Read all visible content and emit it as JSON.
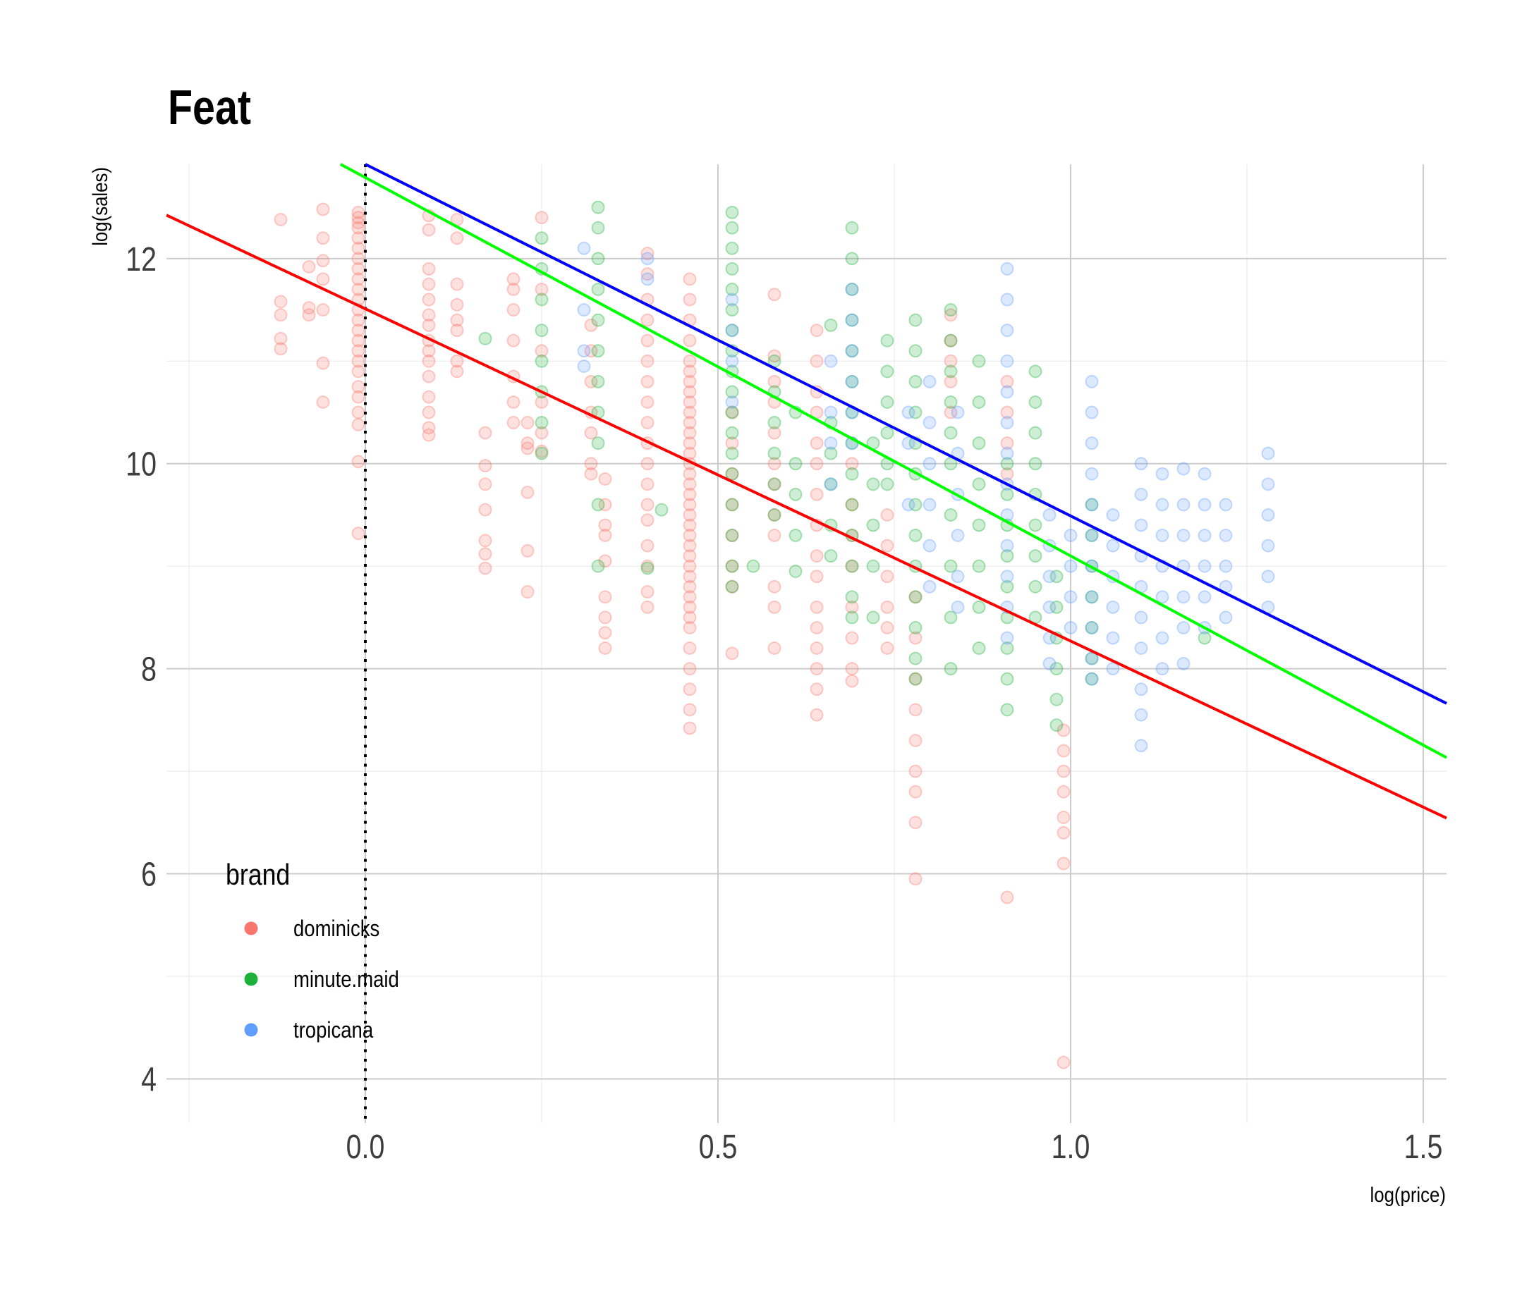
{
  "chart_data": {
    "type": "scatter",
    "title": "Feat",
    "xlabel": "log(price)",
    "ylabel": "log(sales)",
    "xlim": [
      -0.282,
      1.533
    ],
    "ylim": [
      3.57,
      12.92
    ],
    "x_ticks": [
      0.0,
      0.5,
      1.0,
      1.5
    ],
    "x_tick_labels": [
      "0.0",
      "0.5",
      "1.0",
      "1.5"
    ],
    "y_ticks": [
      4,
      6,
      8,
      10,
      12
    ],
    "y_tick_labels": [
      "4",
      "6",
      "8",
      "10",
      "12"
    ],
    "x_minor": [
      -0.25,
      0.25,
      0.75,
      1.25
    ],
    "y_minor": [
      5,
      7,
      9,
      11
    ],
    "grid": true,
    "reference_line": {
      "x": 0.0,
      "style": "dotted",
      "color": "#000000"
    },
    "legend": {
      "title": "brand",
      "placement": "bottom-left-inside"
    },
    "series": [
      {
        "name": "dominicks",
        "color": "#F8766D",
        "fit_line": {
          "intercept": 11.51,
          "slope": -3.24,
          "color": "#FF0000"
        },
        "columns": [
          {
            "x": -0.12,
            "y": [
              12.38,
              11.58,
              11.45,
              11.22,
              11.12
            ]
          },
          {
            "x": -0.08,
            "y": [
              11.92,
              11.52,
              11.45
            ]
          },
          {
            "x": -0.06,
            "y": [
              12.48,
              12.2,
              11.98,
              11.8,
              11.5,
              10.98,
              10.6
            ]
          },
          {
            "x": -0.01,
            "y": [
              12.45,
              12.4,
              12.35,
              12.3,
              12.2,
              12.1,
              12.0,
              11.9,
              11.8,
              11.7,
              11.6,
              11.5,
              11.4,
              11.3,
              11.2,
              11.1,
              11.0,
              10.9,
              10.75,
              10.65,
              10.5,
              10.38,
              10.02,
              9.32
            ]
          },
          {
            "x": 0.09,
            "y": [
              12.42,
              12.28,
              11.9,
              11.75,
              11.6,
              11.45,
              11.35,
              11.2,
              11.1,
              11.0,
              10.85,
              10.65,
              10.5,
              10.35,
              10.28
            ]
          },
          {
            "x": 0.13,
            "y": [
              12.38,
              12.2,
              11.75,
              11.55,
              11.4,
              11.3,
              11.0,
              10.9
            ]
          },
          {
            "x": 0.17,
            "y": [
              10.3,
              9.98,
              9.8,
              9.55,
              9.25,
              9.12,
              8.98
            ]
          },
          {
            "x": 0.21,
            "y": [
              11.8,
              11.7,
              11.5,
              11.2,
              10.85,
              10.6,
              10.4
            ]
          },
          {
            "x": 0.23,
            "y": [
              10.4,
              10.2,
              10.15,
              9.72,
              9.15,
              8.75
            ]
          },
          {
            "x": 0.25,
            "y": [
              12.4,
              11.7,
              11.1,
              10.6,
              10.3,
              10.12
            ]
          },
          {
            "x": 0.32,
            "y": [
              11.35,
              11.1,
              10.8,
              10.5,
              10.3,
              10.0,
              9.9
            ]
          },
          {
            "x": 0.34,
            "y": [
              9.85,
              9.6,
              9.4,
              9.3,
              9.05,
              8.7,
              8.5,
              8.35,
              8.2
            ]
          },
          {
            "x": 0.4,
            "y": [
              12.05,
              11.85,
              11.6,
              11.4,
              11.2,
              11.0,
              10.8,
              10.6,
              10.4,
              10.2,
              10.0,
              9.8,
              9.6,
              9.45,
              9.2,
              9.0,
              8.75,
              8.6
            ]
          },
          {
            "x": 0.46,
            "y": [
              11.8,
              11.6,
              11.4,
              11.2,
              11.0,
              10.9,
              10.8,
              10.7,
              10.6,
              10.5,
              10.4,
              10.3,
              10.2,
              10.1,
              10.0,
              9.9,
              9.8,
              9.7,
              9.6,
              9.5,
              9.4,
              9.3,
              9.2,
              9.1,
              9.0,
              8.9,
              8.8,
              8.7,
              8.6,
              8.5,
              8.4,
              8.2,
              8.0,
              7.8,
              7.6,
              7.42
            ]
          },
          {
            "x": 0.52,
            "y": [
              10.5,
              10.2,
              9.9,
              9.6,
              9.3,
              9.0,
              8.8,
              8.15
            ]
          },
          {
            "x": 0.58,
            "y": [
              11.65,
              11.05,
              10.8,
              10.6,
              10.3,
              10.0,
              9.8,
              9.5,
              9.3,
              8.8,
              8.6,
              8.2
            ]
          },
          {
            "x": 0.64,
            "y": [
              11.3,
              11.0,
              10.7,
              10.5,
              10.2,
              10.0,
              9.7,
              9.4,
              9.1,
              8.9,
              8.6,
              8.4,
              8.2,
              8.0,
              7.8,
              7.55
            ]
          },
          {
            "x": 0.69,
            "y": [
              10.0,
              9.6,
              9.3,
              9.0,
              8.6,
              8.3,
              8.0,
              7.88
            ]
          },
          {
            "x": 0.74,
            "y": [
              9.5,
              9.2,
              8.9,
              8.6,
              8.4,
              8.2
            ]
          },
          {
            "x": 0.78,
            "y": [
              8.7,
              8.3,
              7.9,
              7.6,
              7.3,
              7.0,
              6.8,
              6.5,
              5.95
            ]
          },
          {
            "x": 0.83,
            "y": [
              11.45,
              11.2,
              11.0,
              10.8,
              10.5
            ]
          },
          {
            "x": 0.91,
            "y": [
              10.8,
              10.5,
              10.2,
              9.9,
              5.77
            ]
          },
          {
            "x": 0.99,
            "y": [
              7.4,
              7.2,
              7.0,
              6.8,
              6.55,
              6.4,
              6.1,
              4.16
            ]
          }
        ]
      },
      {
        "name": "minute.maid",
        "color": "#1DB03A",
        "fit_line": {
          "intercept": 12.79,
          "slope": -3.69,
          "color": "#00FF00"
        },
        "columns": [
          {
            "x": 0.17,
            "y": [
              11.22
            ]
          },
          {
            "x": 0.25,
            "y": [
              12.2,
              11.9,
              11.6,
              11.3,
              11.0,
              10.7,
              10.4,
              10.1
            ]
          },
          {
            "x": 0.33,
            "y": [
              12.5,
              12.3,
              12.0,
              11.7,
              11.4,
              11.1,
              10.8,
              10.5,
              10.2,
              9.6,
              9.0
            ]
          },
          {
            "x": 0.4,
            "y": [
              8.98
            ]
          },
          {
            "x": 0.42,
            "y": [
              9.55
            ]
          },
          {
            "x": 0.52,
            "y": [
              12.45,
              12.3,
              12.1,
              11.9,
              11.7,
              11.5,
              11.3,
              11.1,
              10.9,
              10.7,
              10.5,
              10.3,
              10.1,
              9.9,
              9.6,
              9.3,
              9.0,
              8.8
            ]
          },
          {
            "x": 0.55,
            "y": [
              9.0
            ]
          },
          {
            "x": 0.58,
            "y": [
              11.0,
              10.7,
              10.4,
              10.1,
              9.8,
              9.5
            ]
          },
          {
            "x": 0.61,
            "y": [
              10.5,
              10.0,
              9.7,
              9.3,
              8.95
            ]
          },
          {
            "x": 0.66,
            "y": [
              11.35,
              10.4,
              10.1,
              9.8,
              9.4,
              9.1
            ]
          },
          {
            "x": 0.69,
            "y": [
              12.3,
              12.0,
              11.7,
              11.4,
              11.1,
              10.8,
              10.5,
              10.2,
              9.9,
              9.6,
              9.3,
              9.0,
              8.7,
              8.5
            ]
          },
          {
            "x": 0.72,
            "y": [
              10.2,
              9.8,
              9.4,
              9.0,
              8.5
            ]
          },
          {
            "x": 0.74,
            "y": [
              11.2,
              10.9,
              10.6,
              10.3,
              10.0,
              9.8
            ]
          },
          {
            "x": 0.78,
            "y": [
              11.4,
              11.1,
              10.8,
              10.5,
              10.2,
              9.9,
              9.6,
              9.3,
              9.0,
              8.7,
              8.4,
              8.1,
              7.9
            ]
          },
          {
            "x": 0.83,
            "y": [
              11.5,
              11.2,
              10.9,
              10.6,
              10.3,
              10.0,
              9.5,
              9.0,
              8.5,
              8.0
            ]
          },
          {
            "x": 0.87,
            "y": [
              11.0,
              10.6,
              10.2,
              9.8,
              9.4,
              9.0,
              8.6,
              8.2
            ]
          },
          {
            "x": 0.91,
            "y": [
              10.0,
              9.7,
              9.4,
              9.1,
              8.8,
              8.5,
              8.2,
              7.9,
              7.6
            ]
          },
          {
            "x": 0.95,
            "y": [
              10.9,
              10.6,
              10.3,
              10.0,
              9.7,
              9.4,
              9.1,
              8.8,
              8.5
            ]
          },
          {
            "x": 0.98,
            "y": [
              8.9,
              8.6,
              8.3,
              8.0,
              7.7,
              7.45
            ]
          },
          {
            "x": 1.03,
            "y": [
              9.6,
              9.3,
              9.0,
              8.7,
              8.4,
              8.1,
              7.9
            ]
          },
          {
            "x": 1.19,
            "y": [
              8.3
            ]
          }
        ]
      },
      {
        "name": "tropicana",
        "color": "#619CFF",
        "fit_line": {
          "intercept": 12.92,
          "slope": -3.43,
          "color": "#0000FF"
        },
        "columns": [
          {
            "x": 0.31,
            "y": [
              12.1,
              11.5,
              11.1,
              10.95
            ]
          },
          {
            "x": 0.4,
            "y": [
              12.0,
              11.8
            ]
          },
          {
            "x": 0.52,
            "y": [
              11.6,
              11.3,
              11.0,
              10.6
            ]
          },
          {
            "x": 0.66,
            "y": [
              11.0,
              10.5,
              10.2,
              9.8
            ]
          },
          {
            "x": 0.69,
            "y": [
              11.7,
              11.4,
              11.1,
              10.8,
              10.5,
              10.2
            ]
          },
          {
            "x": 0.77,
            "y": [
              10.5,
              10.2,
              9.6
            ]
          },
          {
            "x": 0.8,
            "y": [
              10.8,
              10.4,
              10.0,
              9.6,
              9.2,
              8.8
            ]
          },
          {
            "x": 0.84,
            "y": [
              10.5,
              10.1,
              9.7,
              9.3,
              8.9,
              8.6
            ]
          },
          {
            "x": 0.91,
            "y": [
              11.9,
              11.6,
              11.3,
              11.0,
              10.7,
              10.4,
              10.1,
              9.8,
              9.5,
              9.2,
              8.9,
              8.6,
              8.3
            ]
          },
          {
            "x": 0.97,
            "y": [
              9.5,
              9.2,
              8.9,
              8.6,
              8.3,
              8.05
            ]
          },
          {
            "x": 1.0,
            "y": [
              9.3,
              9.0,
              8.7,
              8.4
            ]
          },
          {
            "x": 1.03,
            "y": [
              10.8,
              10.5,
              10.2,
              9.9,
              9.6,
              9.3,
              9.0,
              8.7,
              8.4,
              8.1,
              7.9
            ]
          },
          {
            "x": 1.06,
            "y": [
              9.5,
              9.2,
              8.9,
              8.6,
              8.3,
              8.0
            ]
          },
          {
            "x": 1.1,
            "y": [
              10.0,
              9.7,
              9.4,
              9.1,
              8.8,
              8.5,
              8.2,
              7.8,
              7.55,
              7.25
            ]
          },
          {
            "x": 1.13,
            "y": [
              9.9,
              9.6,
              9.3,
              9.0,
              8.7,
              8.3,
              8.0
            ]
          },
          {
            "x": 1.16,
            "y": [
              9.95,
              9.6,
              9.3,
              9.0,
              8.7,
              8.4,
              8.05
            ]
          },
          {
            "x": 1.19,
            "y": [
              9.9,
              9.6,
              9.3,
              9.0,
              8.7,
              8.4
            ]
          },
          {
            "x": 1.22,
            "y": [
              9.6,
              9.3,
              9.0,
              8.8,
              8.5
            ]
          },
          {
            "x": 1.28,
            "y": [
              10.1,
              9.8,
              9.5,
              9.2,
              8.9,
              8.6
            ]
          }
        ]
      }
    ]
  }
}
